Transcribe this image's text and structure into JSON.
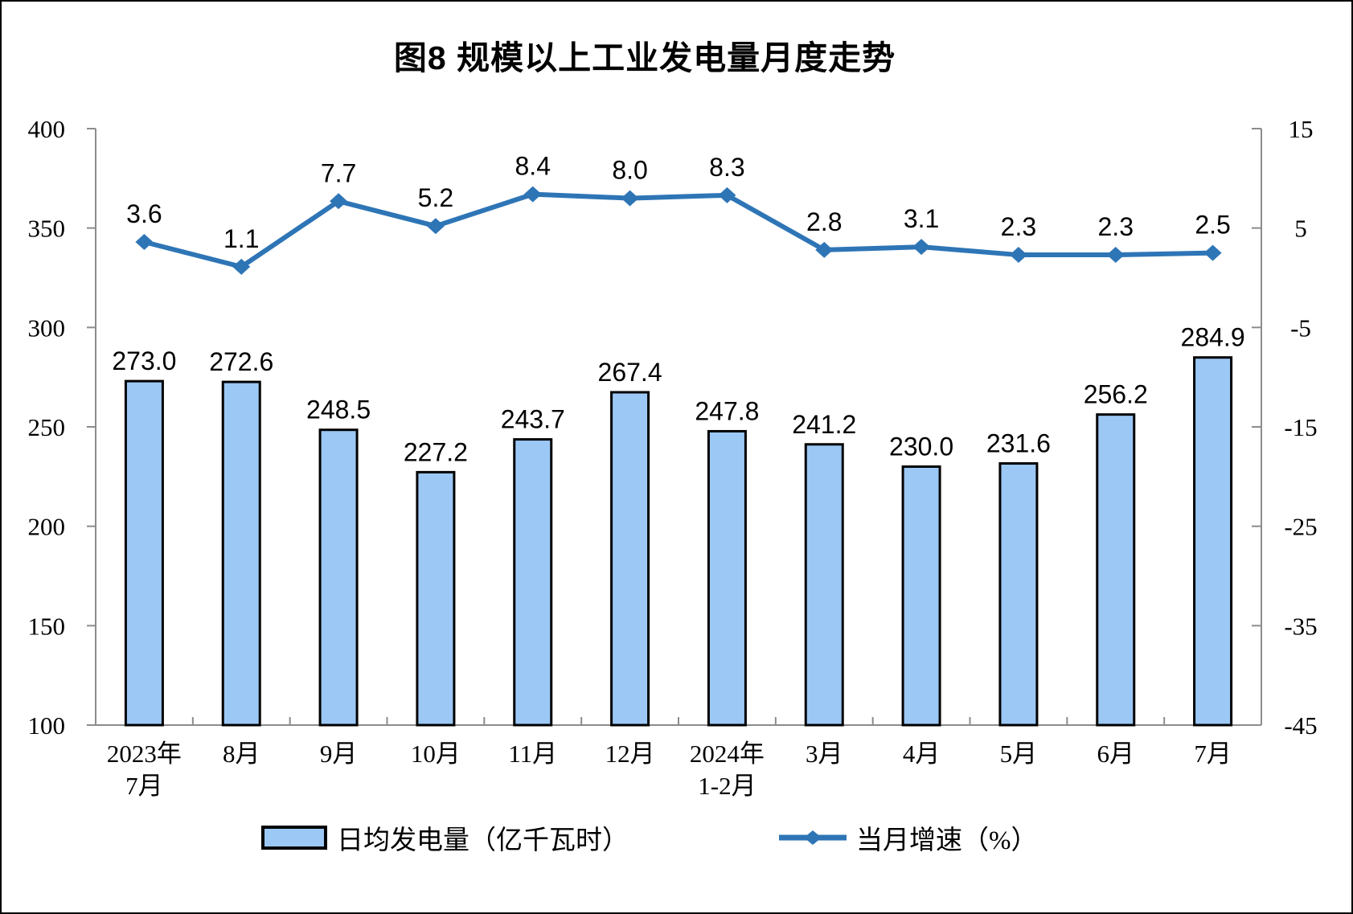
{
  "title": "图8  规模以上工业发电量月度走势",
  "legend": {
    "bar_label": "日均发电量（亿千瓦时）",
    "line_label": "当月增速（%）"
  },
  "colors": {
    "bar_fill": "#9CC8F5",
    "bar_border": "#000000",
    "line": "#2E75B6",
    "axis": "#8C8C8C",
    "label_text": "#000000"
  },
  "chart_data": {
    "type": "bar+line combo",
    "title": "图8  规模以上工业发电量月度走势",
    "categories": [
      [
        "2023年",
        "7月"
      ],
      [
        "8月"
      ],
      [
        "9月"
      ],
      [
        "10月"
      ],
      [
        "11月"
      ],
      [
        "12月"
      ],
      [
        "2024年",
        "1-2月"
      ],
      [
        "3月"
      ],
      [
        "4月"
      ],
      [
        "5月"
      ],
      [
        "6月"
      ],
      [
        "7月"
      ]
    ],
    "series": [
      {
        "name": "日均发电量（亿千瓦时）",
        "type": "bar",
        "axis": "left",
        "values": [
          273.0,
          272.6,
          248.5,
          227.2,
          243.7,
          267.4,
          247.8,
          241.2,
          230.0,
          231.6,
          256.2,
          284.9
        ]
      },
      {
        "name": "当月增速（%）",
        "type": "line",
        "axis": "right",
        "values": [
          3.6,
          1.1,
          7.7,
          5.2,
          8.4,
          8.0,
          8.3,
          2.8,
          3.1,
          2.3,
          2.3,
          2.5
        ]
      }
    ],
    "left_axis": {
      "min": 100,
      "max": 400,
      "ticks": [
        400,
        350,
        300,
        250,
        200,
        150,
        100
      ]
    },
    "right_axis": {
      "min": -45,
      "max": 15,
      "ticks": [
        15,
        5,
        -5,
        -15,
        -25,
        -35,
        -45
      ]
    },
    "grid": false,
    "data_labels": true,
    "legend_position": "bottom"
  }
}
